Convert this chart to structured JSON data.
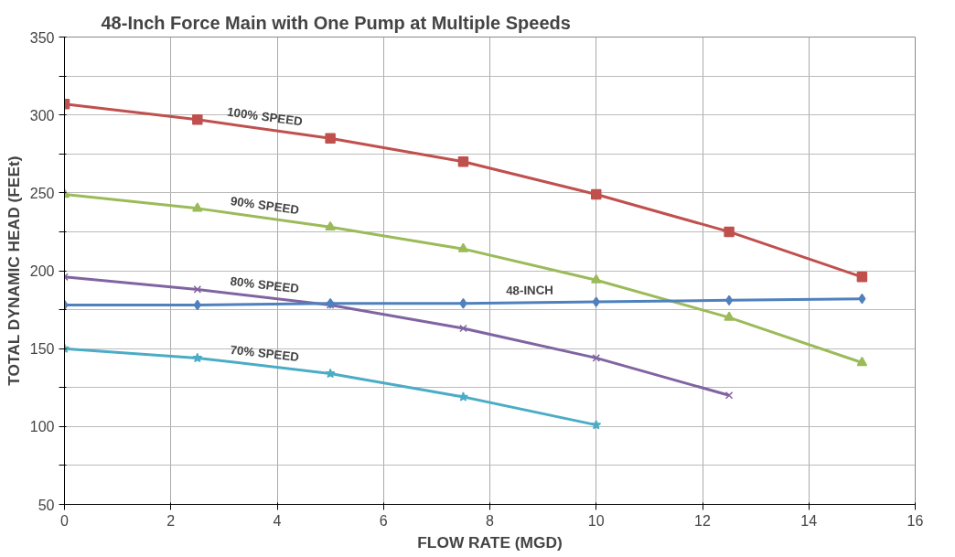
{
  "chart_data": {
    "type": "line",
    "title": "48-Inch Force Main with One Pump at Multiple Speeds",
    "xlabel": "FLOW RATE (MGD)",
    "ylabel": "TOTAL DYNAMIC HEAD (FEEt)",
    "x": [
      0,
      2.5,
      5,
      7.5,
      10,
      12.5,
      15
    ],
    "series": [
      {
        "name": "100% SPEED",
        "color": "#c0504d",
        "marker": "square",
        "values": [
          307,
          297,
          285,
          270,
          249,
          225,
          196
        ]
      },
      {
        "name": "90% SPEED",
        "color": "#9bbb59",
        "marker": "triangle",
        "values": [
          249,
          240,
          228,
          214,
          194,
          170,
          141
        ]
      },
      {
        "name": "80% SPEED",
        "color": "#8064a2",
        "marker": "cross",
        "values": [
          196,
          188,
          178,
          163,
          144,
          120,
          null
        ]
      },
      {
        "name": "48-INCH",
        "color": "#4f81bd",
        "marker": "diamond",
        "values": [
          178,
          178,
          179,
          179,
          180,
          181,
          182
        ]
      },
      {
        "name": "70% SPEED",
        "color": "#4bacc6",
        "marker": "star",
        "values": [
          150,
          144,
          134,
          119,
          101,
          null,
          null
        ]
      }
    ],
    "xlim": [
      0,
      16
    ],
    "xticks": [
      0,
      2,
      4,
      6,
      8,
      10,
      12,
      14,
      16
    ],
    "ylim": [
      50,
      350
    ],
    "yticks": [
      50,
      {
        "value": 75,
        "label": null
      },
      100,
      {
        "value": 125,
        "label": null
      },
      150,
      {
        "value": 175,
        "label": null
      },
      200,
      {
        "value": 225,
        "label": null
      },
      250,
      {
        "value": 275,
        "label": null
      },
      300,
      {
        "value": 325,
        "label": null
      },
      350
    ],
    "grid": true,
    "line_style": "solid"
  }
}
